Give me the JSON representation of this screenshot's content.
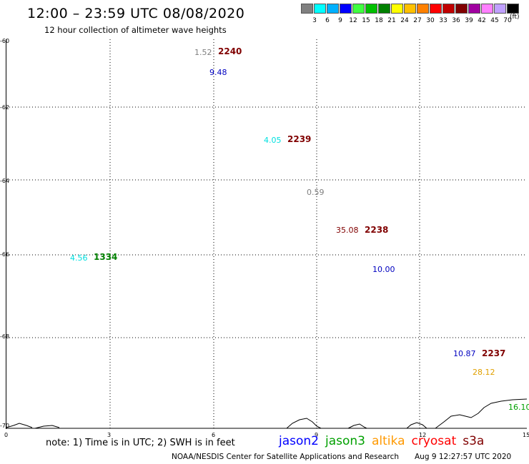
{
  "header": {
    "title": "12:00 – 23:59 UTC 08/08/2020",
    "subtitle": "12 hour collection of altimeter wave heights"
  },
  "color_scale": {
    "unit": "(ft)",
    "bins": [
      {
        "label": "3",
        "color": "#808080"
      },
      {
        "label": "6",
        "color": "#00ffff"
      },
      {
        "label": "9",
        "color": "#00b0ff"
      },
      {
        "label": "12",
        "color": "#0000ff"
      },
      {
        "label": "15",
        "color": "#40ff40"
      },
      {
        "label": "18",
        "color": "#00c000"
      },
      {
        "label": "21",
        "color": "#008000"
      },
      {
        "label": "24",
        "color": "#ffff00"
      },
      {
        "label": "27",
        "color": "#ffc000"
      },
      {
        "label": "30",
        "color": "#ff8000"
      },
      {
        "label": "33",
        "color": "#ff0000"
      },
      {
        "label": "36",
        "color": "#c00000"
      },
      {
        "label": "39",
        "color": "#800000"
      },
      {
        "label": "42",
        "color": "#a000a0"
      },
      {
        "label": "45",
        "color": "#ff80ff"
      },
      {
        "label": "70",
        "color": "#c0a0ff"
      },
      {
        "label": "",
        "color": "#000000"
      }
    ]
  },
  "map": {
    "lat_labels": [
      "-60",
      "-62",
      "-64",
      "-66",
      "-68",
      "-70"
    ],
    "lon_labels": [
      "0",
      "3",
      "6",
      "9",
      "12",
      "15"
    ],
    "observations": [
      {
        "value": "1.52",
        "color": "#808080"
      },
      {
        "value": "9.48",
        "color": "#0000c0"
      },
      {
        "value": "4.05",
        "color": "#00e0e0"
      },
      {
        "value": "0.59",
        "color": "#808080"
      },
      {
        "value": "35.08",
        "color": "#800000"
      },
      {
        "value": "10.00",
        "color": "#0000c0"
      },
      {
        "value": "4.56",
        "color": "#00e0e0"
      },
      {
        "value": "10.87",
        "color": "#0000c0"
      },
      {
        "value": "28.12",
        "color": "#e0a000"
      },
      {
        "value": "16.10",
        "color": "#00a000"
      }
    ],
    "tracks": [
      {
        "label": "2240",
        "color": "#800000"
      },
      {
        "label": "2239",
        "color": "#800000"
      },
      {
        "label": "2238",
        "color": "#800000"
      },
      {
        "label": "1334",
        "color": "#008000"
      },
      {
        "label": "2237",
        "color": "#800000"
      }
    ]
  },
  "notes": {
    "text": "note:  1) Time is in UTC;  2) SWH is in feet"
  },
  "legend": {
    "items": [
      {
        "label": "jason2",
        "color": "#0000ff"
      },
      {
        "label": "jason3",
        "color": "#00a000"
      },
      {
        "label": "altika",
        "color": "#ff9900"
      },
      {
        "label": "cryosat",
        "color": "#ff0000"
      },
      {
        "label": "s3a",
        "color": "#800000"
      }
    ]
  },
  "footer": {
    "credit": "NOAA/NESDIS Center for Satellite Applications and Research",
    "timestamp": "Aug  9 12:27:57 UTC 2020"
  }
}
